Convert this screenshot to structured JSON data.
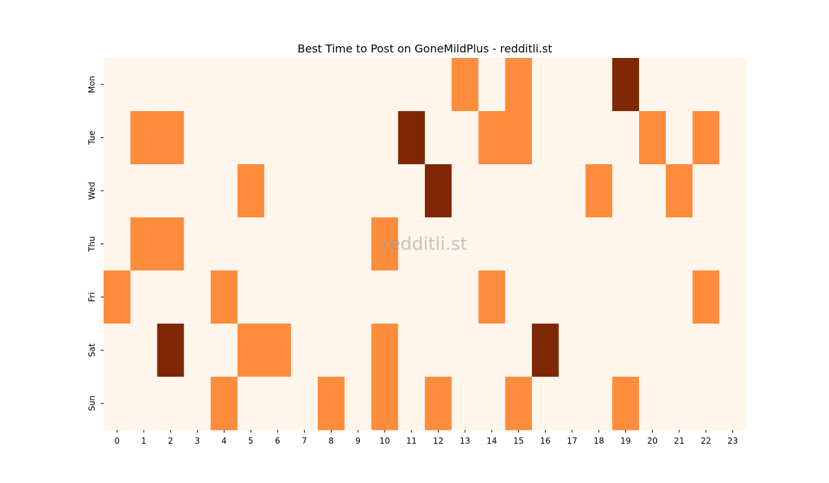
{
  "chart_data": {
    "type": "heatmap",
    "title": "Best Time to Post on GoneMildPlus - redditli.st",
    "watermark": "redditli.st",
    "xlabel": "",
    "ylabel": "",
    "x_categories": [
      "0",
      "1",
      "2",
      "3",
      "4",
      "5",
      "6",
      "7",
      "8",
      "9",
      "10",
      "11",
      "12",
      "13",
      "14",
      "15",
      "16",
      "17",
      "18",
      "19",
      "20",
      "21",
      "22",
      "23"
    ],
    "y_categories": [
      "Mon",
      "Tue",
      "Wed",
      "Thu",
      "Fri",
      "Sat",
      "Sun"
    ],
    "colorbar": false,
    "colormap": {
      "0": "#fff5eb",
      "1": "#fd8d3c",
      "2": "#7f2704"
    },
    "values": [
      [
        0,
        0,
        0,
        0,
        0,
        0,
        0,
        0,
        0,
        0,
        0,
        0,
        0,
        1,
        0,
        1,
        0,
        0,
        0,
        2,
        0,
        0,
        0,
        0
      ],
      [
        0,
        1,
        1,
        0,
        0,
        0,
        0,
        0,
        0,
        0,
        0,
        2,
        0,
        0,
        1,
        1,
        0,
        0,
        0,
        0,
        1,
        0,
        1,
        0
      ],
      [
        0,
        0,
        0,
        0,
        0,
        1,
        0,
        0,
        0,
        0,
        0,
        0,
        2,
        0,
        0,
        0,
        0,
        0,
        1,
        0,
        0,
        1,
        0,
        0
      ],
      [
        0,
        1,
        1,
        0,
        0,
        0,
        0,
        0,
        0,
        0,
        1,
        0,
        0,
        0,
        0,
        0,
        0,
        0,
        0,
        0,
        0,
        0,
        0,
        0
      ],
      [
        1,
        0,
        0,
        0,
        1,
        0,
        0,
        0,
        0,
        0,
        0,
        0,
        0,
        0,
        1,
        0,
        0,
        0,
        0,
        0,
        0,
        0,
        1,
        0
      ],
      [
        0,
        0,
        2,
        0,
        0,
        1,
        1,
        0,
        0,
        0,
        1,
        0,
        0,
        0,
        0,
        0,
        2,
        0,
        0,
        0,
        0,
        0,
        0,
        0
      ],
      [
        0,
        0,
        0,
        0,
        1,
        0,
        0,
        0,
        1,
        0,
        1,
        0,
        1,
        0,
        0,
        1,
        0,
        0,
        0,
        1,
        0,
        0,
        0,
        0
      ]
    ]
  }
}
